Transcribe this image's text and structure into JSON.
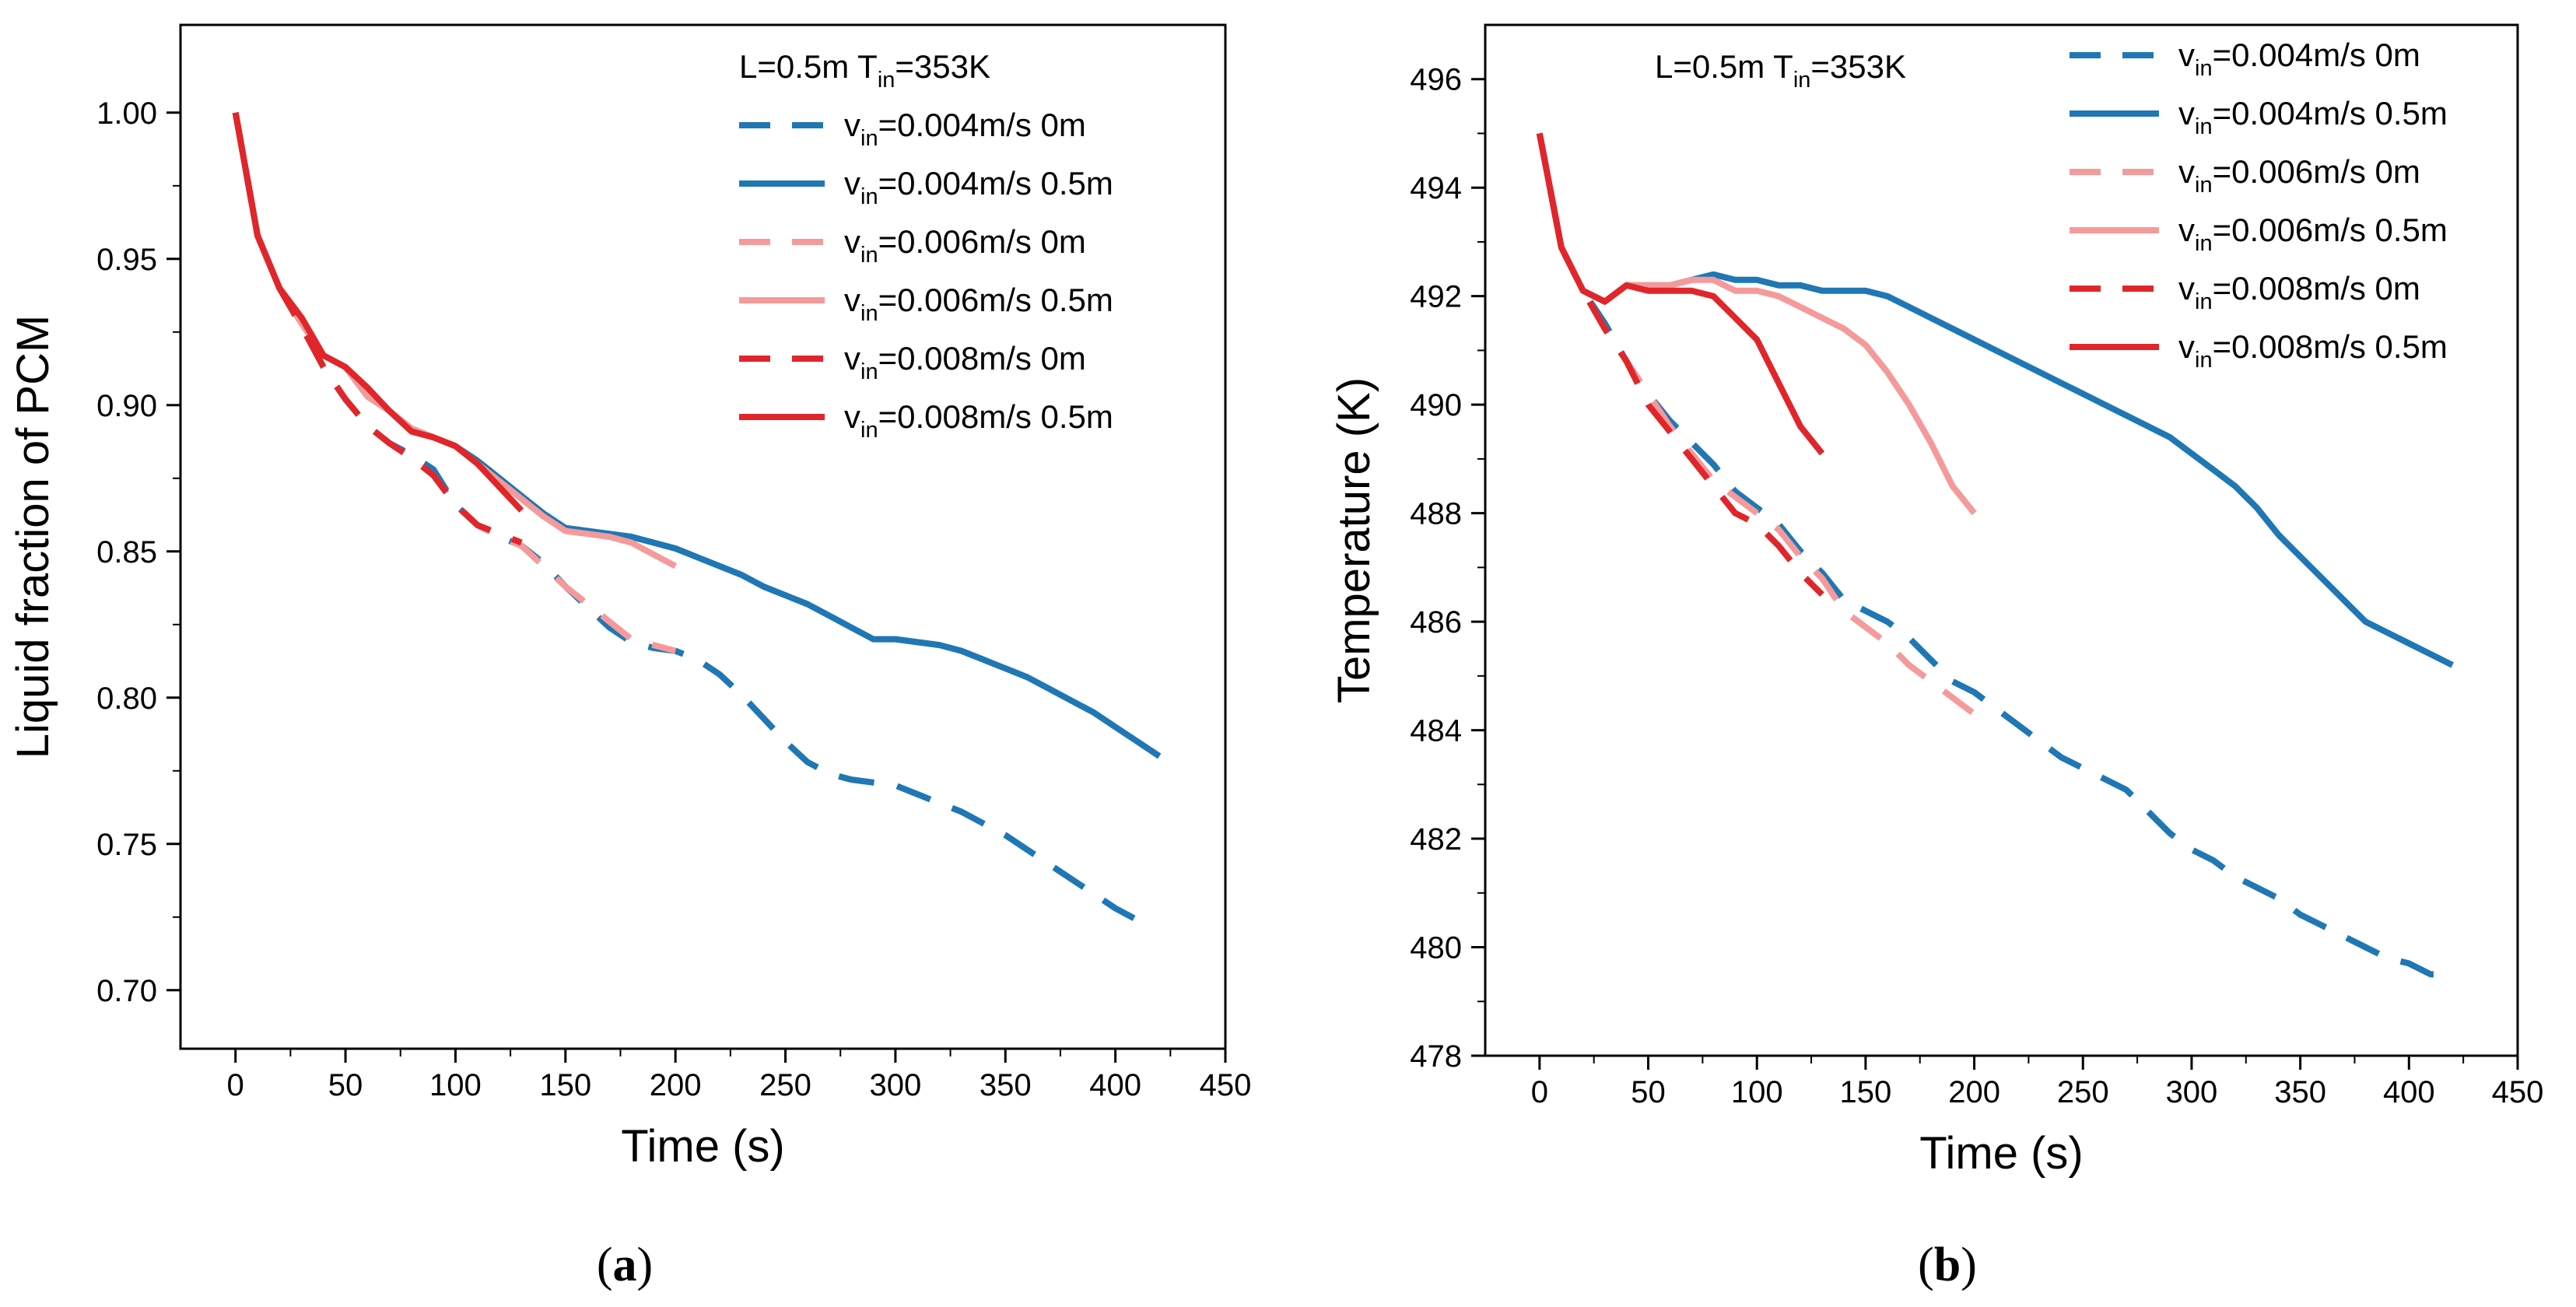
{
  "colors": {
    "blue": "#1f77b4",
    "pink": "#f59a9a",
    "red": "#e0262b",
    "axis": "#000000"
  },
  "chart_data": [
    {
      "type": "line",
      "panel": "a",
      "xlabel": "Time (s)",
      "ylabel": "Liquid fraction of PCM",
      "xlim": [
        -25,
        450
      ],
      "ylim": [
        0.68,
        1.03
      ],
      "xticks": [
        0,
        50,
        100,
        150,
        200,
        250,
        300,
        350,
        400,
        450
      ],
      "yticks": [
        0.7,
        0.75,
        0.8,
        0.85,
        0.9,
        0.95,
        1.0
      ],
      "ytick_decimals": 2,
      "legend": {
        "position": "top-right",
        "heading": "L=0.5m T",
        "heading_sub": "in",
        "heading_suffix": "=353K"
      },
      "series": [
        {
          "name": "v_in=0.004m/s 0m",
          "label": "v",
          "label_sub": "in",
          "label_suffix": "=0.004m/s 0m",
          "color": "blue",
          "dash": "dashed",
          "x": [
            0,
            10,
            20,
            30,
            40,
            50,
            60,
            70,
            80,
            90,
            100,
            110,
            120,
            130,
            140,
            150,
            160,
            170,
            180,
            190,
            200,
            210,
            220,
            230,
            240,
            250,
            260,
            270,
            280,
            290,
            300,
            310,
            320,
            330,
            340,
            350,
            360,
            370,
            380,
            390,
            400,
            410
          ],
          "values": [
            1.0,
            0.958,
            0.94,
            0.927,
            0.913,
            0.902,
            0.893,
            0.887,
            0.883,
            0.878,
            0.866,
            0.859,
            0.855,
            0.852,
            0.846,
            0.838,
            0.831,
            0.824,
            0.819,
            0.817,
            0.816,
            0.813,
            0.808,
            0.801,
            0.793,
            0.785,
            0.778,
            0.774,
            0.772,
            0.771,
            0.77,
            0.767,
            0.764,
            0.761,
            0.757,
            0.753,
            0.748,
            0.743,
            0.738,
            0.733,
            0.728,
            0.724
          ]
        },
        {
          "name": "v_in=0.004m/s 0.5m",
          "label": "v",
          "label_sub": "in",
          "label_suffix": "=0.004m/s 0.5m",
          "color": "blue",
          "dash": "solid",
          "x": [
            0,
            10,
            20,
            30,
            40,
            50,
            60,
            70,
            80,
            90,
            100,
            110,
            120,
            130,
            140,
            150,
            160,
            170,
            180,
            190,
            200,
            210,
            220,
            230,
            240,
            250,
            260,
            270,
            280,
            290,
            300,
            310,
            320,
            330,
            340,
            350,
            360,
            370,
            380,
            390,
            400,
            410,
            420
          ],
          "values": [
            1.0,
            0.958,
            0.94,
            0.928,
            0.917,
            0.913,
            0.903,
            0.898,
            0.892,
            0.889,
            0.886,
            0.881,
            0.875,
            0.869,
            0.863,
            0.858,
            0.857,
            0.856,
            0.855,
            0.853,
            0.851,
            0.848,
            0.845,
            0.842,
            0.838,
            0.835,
            0.832,
            0.828,
            0.824,
            0.82,
            0.82,
            0.819,
            0.818,
            0.816,
            0.813,
            0.81,
            0.807,
            0.803,
            0.799,
            0.795,
            0.79,
            0.785,
            0.78
          ]
        },
        {
          "name": "v_in=0.006m/s 0m",
          "label": "v",
          "label_sub": "in",
          "label_suffix": "=0.006m/s 0m",
          "color": "pink",
          "dash": "dashed",
          "x": [
            0,
            10,
            20,
            30,
            40,
            50,
            60,
            70,
            80,
            90,
            100,
            110,
            120,
            130,
            140,
            150,
            160,
            170,
            180,
            190,
            200
          ],
          "values": [
            1.0,
            0.958,
            0.94,
            0.927,
            0.913,
            0.902,
            0.893,
            0.887,
            0.882,
            0.876,
            0.866,
            0.859,
            0.855,
            0.852,
            0.845,
            0.838,
            0.832,
            0.826,
            0.82,
            0.818,
            0.816
          ]
        },
        {
          "name": "v_in=0.006m/s 0.5m",
          "label": "v",
          "label_sub": "in",
          "label_suffix": "=0.006m/s 0.5m",
          "color": "pink",
          "dash": "solid",
          "x": [
            0,
            10,
            20,
            30,
            40,
            50,
            60,
            70,
            80,
            90,
            100,
            110,
            120,
            130,
            140,
            150,
            160,
            170,
            180,
            190,
            200
          ],
          "values": [
            1.0,
            0.958,
            0.94,
            0.928,
            0.917,
            0.913,
            0.903,
            0.898,
            0.892,
            0.889,
            0.886,
            0.88,
            0.874,
            0.868,
            0.862,
            0.857,
            0.856,
            0.855,
            0.853,
            0.849,
            0.845
          ]
        },
        {
          "name": "v_in=0.008m/s 0m",
          "label": "v",
          "label_sub": "in",
          "label_suffix": "=0.008m/s 0m",
          "color": "red",
          "dash": "dashed",
          "x": [
            0,
            10,
            20,
            30,
            40,
            50,
            60,
            70,
            80,
            90,
            100,
            110,
            120,
            130
          ],
          "values": [
            1.0,
            0.958,
            0.94,
            0.927,
            0.913,
            0.902,
            0.893,
            0.887,
            0.882,
            0.876,
            0.866,
            0.859,
            0.856,
            0.853
          ]
        },
        {
          "name": "v_in=0.008m/s 0.5m",
          "label": "v",
          "label_sub": "in",
          "label_suffix": "=0.008m/s 0.5m",
          "color": "red",
          "dash": "solid",
          "x": [
            0,
            10,
            20,
            30,
            40,
            50,
            60,
            70,
            80,
            90,
            100,
            110,
            120,
            130
          ],
          "values": [
            1.0,
            0.958,
            0.94,
            0.93,
            0.917,
            0.913,
            0.906,
            0.898,
            0.891,
            0.889,
            0.886,
            0.88,
            0.872,
            0.864
          ]
        }
      ],
      "panel_label_open": "(",
      "panel_label_letter": "a",
      "panel_label_close": ")"
    },
    {
      "type": "line",
      "panel": "b",
      "xlabel": "Time (s)",
      "ylabel": "Temperature (K)",
      "xlim": [
        -25,
        450
      ],
      "ylim": [
        478,
        497
      ],
      "xticks": [
        0,
        50,
        100,
        150,
        200,
        250,
        300,
        350,
        400,
        450
      ],
      "yticks": [
        478,
        480,
        482,
        484,
        486,
        488,
        490,
        492,
        494,
        496
      ],
      "ytick_decimals": 0,
      "legend": {
        "position": "top",
        "heading": "L=0.5m T",
        "heading_sub": "in",
        "heading_suffix": "=353K"
      },
      "series": [
        {
          "name": "v_in=0.004m/s 0m",
          "label": "v",
          "label_sub": "in",
          "label_suffix": "=0.004m/s 0m",
          "color": "blue",
          "dash": "dashed",
          "x": [
            0,
            10,
            20,
            30,
            40,
            50,
            60,
            70,
            80,
            90,
            100,
            110,
            120,
            130,
            140,
            150,
            160,
            170,
            180,
            190,
            200,
            210,
            220,
            230,
            240,
            250,
            260,
            270,
            280,
            290,
            300,
            310,
            320,
            330,
            340,
            350,
            360,
            370,
            380,
            390,
            400,
            410,
            415
          ],
          "values": [
            495.0,
            492.9,
            492.1,
            491.5,
            490.8,
            490.2,
            489.7,
            489.3,
            488.9,
            488.4,
            488.1,
            487.8,
            487.3,
            486.9,
            486.4,
            486.2,
            486.0,
            485.7,
            485.3,
            484.9,
            484.7,
            484.4,
            484.1,
            483.8,
            483.5,
            483.3,
            483.1,
            482.9,
            482.5,
            482.1,
            481.8,
            481.6,
            481.3,
            481.1,
            480.9,
            480.6,
            480.4,
            480.2,
            480.0,
            479.8,
            479.7,
            479.5,
            479.5
          ]
        },
        {
          "name": "v_in=0.004m/s 0.5m",
          "label": "v",
          "label_sub": "in",
          "label_suffix": "=0.004m/s 0.5m",
          "color": "blue",
          "dash": "solid",
          "x": [
            0,
            10,
            20,
            30,
            40,
            50,
            60,
            70,
            80,
            90,
            100,
            110,
            120,
            130,
            140,
            150,
            160,
            170,
            180,
            190,
            200,
            210,
            220,
            230,
            240,
            250,
            260,
            270,
            280,
            290,
            300,
            310,
            320,
            330,
            340,
            350,
            360,
            370,
            380,
            390,
            400,
            410,
            420
          ],
          "values": [
            495.0,
            492.9,
            492.1,
            491.9,
            492.2,
            492.2,
            492.2,
            492.3,
            492.4,
            492.3,
            492.3,
            492.2,
            492.2,
            492.1,
            492.1,
            492.1,
            492.0,
            491.8,
            491.6,
            491.4,
            491.2,
            491.0,
            490.8,
            490.6,
            490.4,
            490.2,
            490.0,
            489.8,
            489.6,
            489.4,
            489.1,
            488.8,
            488.5,
            488.1,
            487.6,
            487.2,
            486.8,
            486.4,
            486.0,
            485.8,
            485.6,
            485.4,
            485.2
          ]
        },
        {
          "name": "v_in=0.006m/s 0m",
          "label": "v",
          "label_sub": "in",
          "label_suffix": "=0.006m/s 0m",
          "color": "pink",
          "dash": "dashed",
          "x": [
            0,
            10,
            20,
            30,
            40,
            50,
            60,
            70,
            80,
            90,
            100,
            110,
            120,
            130,
            140,
            150,
            160,
            170,
            180,
            190,
            200
          ],
          "values": [
            495.0,
            492.9,
            492.1,
            491.4,
            490.8,
            490.2,
            489.6,
            489.1,
            488.6,
            488.3,
            488.0,
            487.7,
            487.2,
            486.8,
            486.2,
            485.9,
            485.6,
            485.2,
            484.9,
            484.6,
            484.3
          ]
        },
        {
          "name": "v_in=0.006m/s 0.5m",
          "label": "v",
          "label_sub": "in",
          "label_suffix": "=0.006m/s 0.5m",
          "color": "pink",
          "dash": "solid",
          "x": [
            0,
            10,
            20,
            30,
            40,
            50,
            60,
            70,
            80,
            90,
            100,
            110,
            120,
            130,
            140,
            150,
            160,
            170,
            180,
            190,
            200
          ],
          "values": [
            495.0,
            492.9,
            492.1,
            491.9,
            492.2,
            492.2,
            492.2,
            492.3,
            492.3,
            492.1,
            492.1,
            492.0,
            491.8,
            491.6,
            491.4,
            491.1,
            490.6,
            490.0,
            489.3,
            488.5,
            488.0
          ]
        },
        {
          "name": "v_in=0.008m/s 0m",
          "label": "v",
          "label_sub": "in",
          "label_suffix": "=0.008m/s 0m",
          "color": "red",
          "dash": "dashed",
          "x": [
            0,
            10,
            20,
            30,
            40,
            50,
            60,
            70,
            80,
            90,
            100,
            110,
            120,
            130
          ],
          "values": [
            495.0,
            492.9,
            492.1,
            491.4,
            490.8,
            490.0,
            489.5,
            489.0,
            488.5,
            488.0,
            487.8,
            487.4,
            486.9,
            486.5
          ]
        },
        {
          "name": "v_in=0.008m/s 0.5m",
          "label": "v",
          "label_sub": "in",
          "label_suffix": "=0.008m/s 0.5m",
          "color": "red",
          "dash": "solid",
          "x": [
            0,
            10,
            20,
            30,
            40,
            50,
            60,
            70,
            80,
            90,
            100,
            110,
            120,
            130
          ],
          "values": [
            495.0,
            492.9,
            492.1,
            491.9,
            492.2,
            492.1,
            492.1,
            492.1,
            492.0,
            491.6,
            491.2,
            490.4,
            489.6,
            489.1
          ]
        }
      ],
      "panel_label_open": "(",
      "panel_label_letter": "b",
      "panel_label_close": ")"
    }
  ]
}
